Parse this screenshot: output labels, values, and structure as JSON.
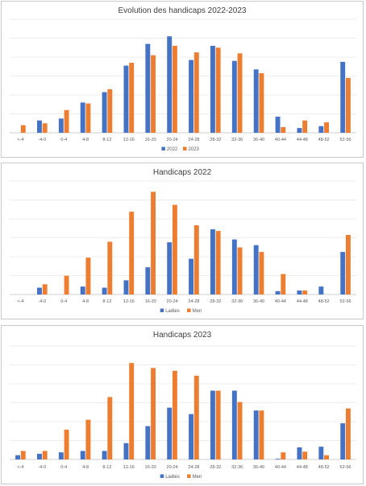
{
  "colors": {
    "blue": "#4472C4",
    "orange": "#ED7D31",
    "grid": "#D9D9D9",
    "axis": "#BFBFBF"
  },
  "chart_data": [
    {
      "type": "bar",
      "title": "Evolution des handicaps 2022-2023",
      "xlabel": "",
      "ylabel": "",
      "categories": [
        "<-4",
        "-4-0",
        "0-4",
        "4-8",
        "8-12",
        "12-16",
        "16-20",
        "20-24",
        "24-28",
        "28-32",
        "32-36",
        "36-40",
        "40-44",
        "44-48",
        "48-52",
        "52-56"
      ],
      "series": [
        {
          "name": "2022",
          "values": [
            0,
            6.5,
            7.5,
            16,
            21.5,
            35.5,
            47,
            51,
            38.5,
            46,
            38,
            33.5,
            8.5,
            2.5,
            3.5,
            37.5
          ]
        },
        {
          "name": "2023",
          "values": [
            4,
            5,
            12,
            15.5,
            23,
            37,
            41,
            46,
            42.5,
            45,
            42,
            31.5,
            3,
            6.5,
            5.5,
            29
          ]
        }
      ],
      "ylim": [
        0,
        60
      ],
      "grid": true,
      "legend": "bottom"
    },
    {
      "type": "bar",
      "title": "Handicaps 2022",
      "xlabel": "",
      "ylabel": "",
      "categories": [
        "<-4",
        "-4-0",
        "0-4",
        "4-8",
        "8-12",
        "12-16",
        "16-20",
        "20-24",
        "24-28",
        "28-32",
        "32-36",
        "36-40",
        "40-44",
        "44-48",
        "48-52",
        "52-56"
      ],
      "series": [
        {
          "name": "Ladies",
          "values": [
            0,
            1.2,
            0,
            1.4,
            1.2,
            2.5,
            4.8,
            9.2,
            6.3,
            11.5,
            9.7,
            8.7,
            0.6,
            0.7,
            1.4,
            7.5
          ]
        },
        {
          "name": "Men",
          "values": [
            0,
            1.8,
            3.3,
            6.5,
            9.3,
            14.6,
            18.1,
            15.8,
            12.2,
            11.2,
            8.3,
            7.5,
            3.6,
            0.7,
            0,
            10.5
          ]
        }
      ],
      "ylim": [
        0,
        20
      ],
      "grid": true,
      "legend": "bottom"
    },
    {
      "type": "bar",
      "title": "Handicaps 2023",
      "xlabel": "",
      "ylabel": "",
      "categories": [
        "<-4",
        "-4-0",
        "0-4",
        "4-8",
        "8-12",
        "12-16",
        "16-20",
        "20-24",
        "24-28",
        "28-32",
        "32-36",
        "36-40",
        "40-44",
        "44-48",
        "48-52",
        "52-56"
      ],
      "series": [
        {
          "name": "Ladies",
          "values": [
            0.6,
            0.8,
            1,
            1.2,
            1.2,
            2.3,
            4.7,
            7.3,
            6.4,
            9.7,
            9.7,
            6.9,
            0.1,
            1.7,
            1.8,
            5.1
          ]
        },
        {
          "name": "Men",
          "values": [
            1.2,
            1.2,
            4.2,
            5.6,
            8.8,
            13.6,
            12.9,
            12.5,
            11.8,
            9.7,
            8.1,
            6.9,
            1,
            1.1,
            0.6,
            7.2
          ]
        }
      ],
      "ylim": [
        0,
        16
      ],
      "grid": true,
      "legend": "bottom"
    }
  ]
}
